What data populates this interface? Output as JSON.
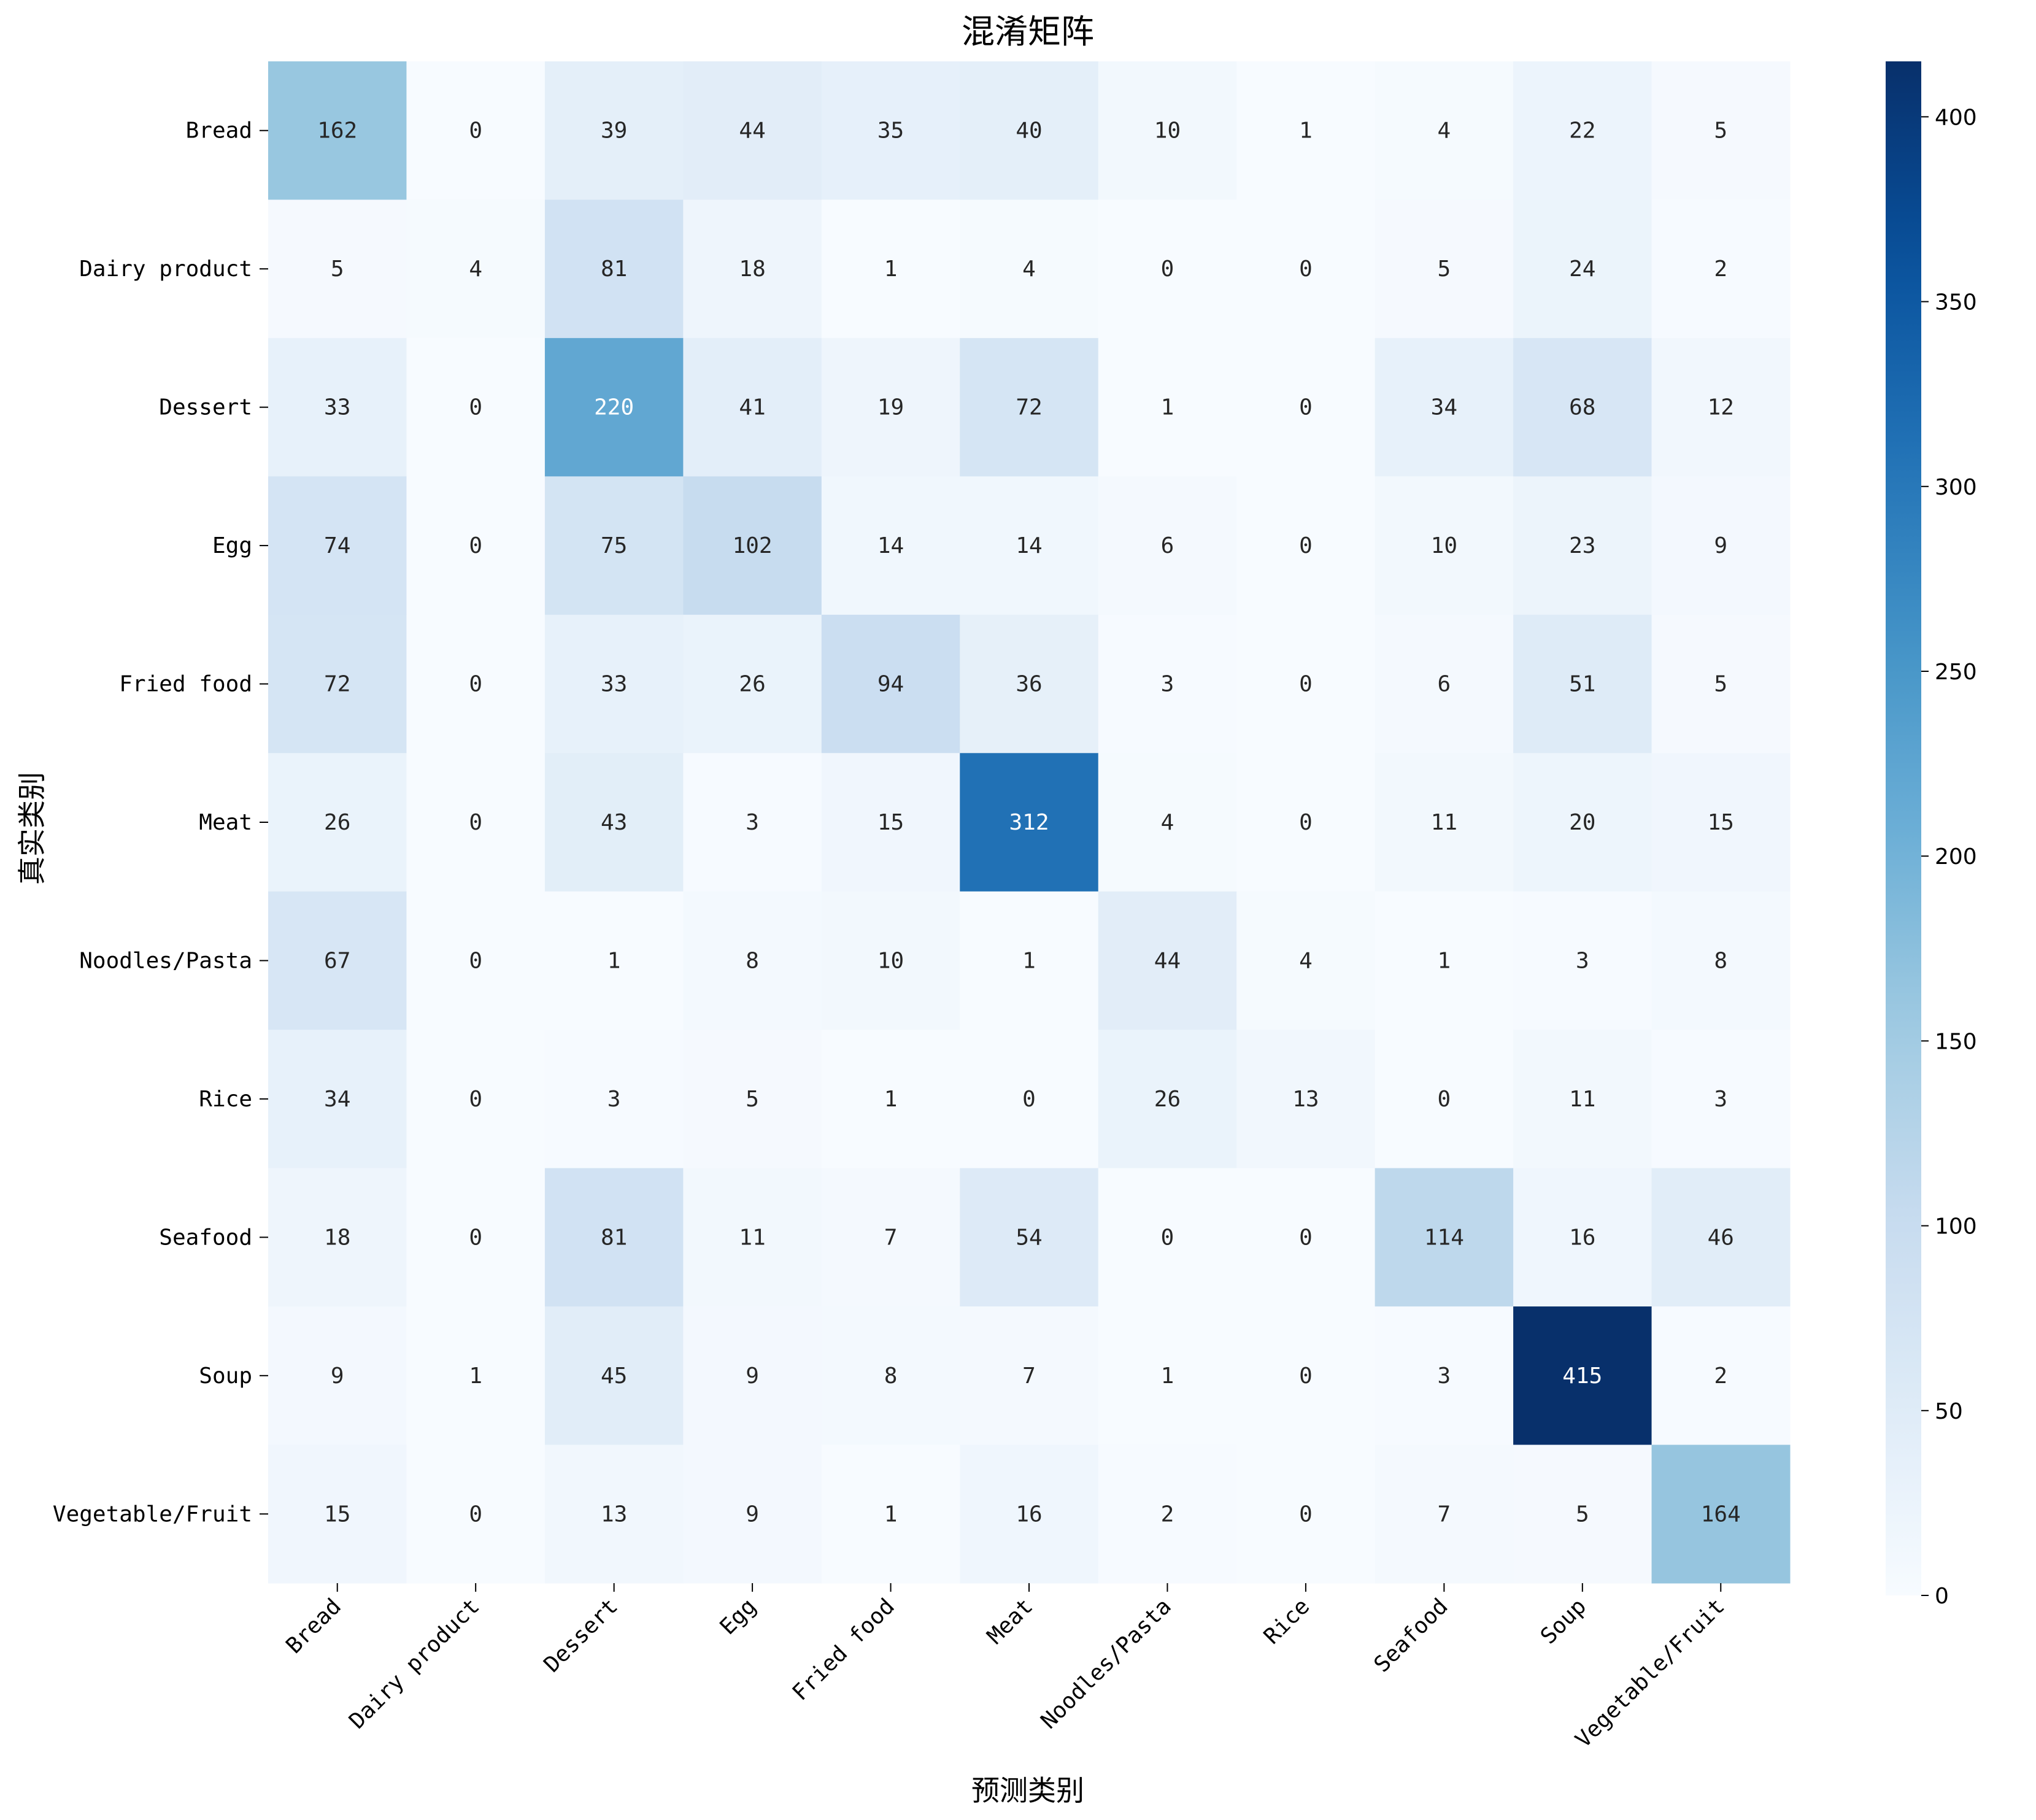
{
  "chart_data": {
    "type": "heatmap",
    "title": "混淆矩阵",
    "xlabel": "预测类别",
    "ylabel": "真实类别",
    "categories": [
      "Bread",
      "Dairy product",
      "Dessert",
      "Egg",
      "Fried food",
      "Meat",
      "Noodles/Pasta",
      "Rice",
      "Seafood",
      "Soup",
      "Vegetable/Fruit"
    ],
    "matrix": [
      [
        162,
        0,
        39,
        44,
        35,
        40,
        10,
        1,
        4,
        22,
        5
      ],
      [
        5,
        4,
        81,
        18,
        1,
        4,
        0,
        0,
        5,
        24,
        2
      ],
      [
        33,
        0,
        220,
        41,
        19,
        72,
        1,
        0,
        34,
        68,
        12
      ],
      [
        74,
        0,
        75,
        102,
        14,
        14,
        6,
        0,
        10,
        23,
        9
      ],
      [
        72,
        0,
        33,
        26,
        94,
        36,
        3,
        0,
        6,
        51,
        5
      ],
      [
        26,
        0,
        43,
        3,
        15,
        312,
        4,
        0,
        11,
        20,
        15
      ],
      [
        67,
        0,
        1,
        8,
        10,
        1,
        44,
        4,
        1,
        3,
        8
      ],
      [
        34,
        0,
        3,
        5,
        1,
        0,
        26,
        13,
        0,
        11,
        3
      ],
      [
        18,
        0,
        81,
        11,
        7,
        54,
        0,
        0,
        114,
        16,
        46
      ],
      [
        9,
        1,
        45,
        9,
        8,
        7,
        1,
        0,
        3,
        415,
        2
      ],
      [
        15,
        0,
        13,
        9,
        1,
        16,
        2,
        0,
        7,
        5,
        164
      ]
    ],
    "colormap": "Blues",
    "colorbar": {
      "vmin": 0,
      "vmax": 415,
      "ticks": [
        0,
        50,
        100,
        150,
        200,
        250,
        300,
        350,
        400
      ]
    },
    "colors": {
      "scale_light": "#f7fbff",
      "scale_dark": "#08306b",
      "text_dark": "#262626",
      "text_light": "#ffffff"
    }
  }
}
